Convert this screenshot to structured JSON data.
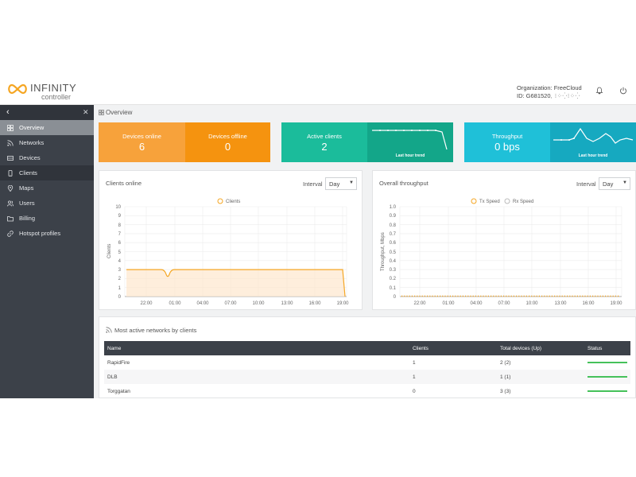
{
  "header": {
    "logo_title": "INFINITY",
    "logo_subtitle": "controller",
    "organization": "Organization: FreeCloud",
    "id_label": "ID: G681520",
    "id_suffix": ", ⁝⁘⁛⁝⁘⁛",
    "icons": [
      "bell-icon",
      "power-icon"
    ]
  },
  "sidebar": {
    "back_icon": "back-chevron-icon",
    "pin_icon": "pin-icon",
    "items": [
      {
        "label": "Overview",
        "icon": "grid-icon",
        "state": "active"
      },
      {
        "label": "Networks",
        "icon": "rss-icon",
        "state": ""
      },
      {
        "label": "Devices",
        "icon": "device-icon",
        "state": ""
      },
      {
        "label": "Clients",
        "icon": "phone-icon",
        "state": "hover"
      },
      {
        "label": "Maps",
        "icon": "map-pin-icon",
        "state": ""
      },
      {
        "label": "Users",
        "icon": "users-icon",
        "state": ""
      },
      {
        "label": "Billing",
        "icon": "folder-icon",
        "state": ""
      },
      {
        "label": "Hotspot profiles",
        "icon": "link-icon",
        "state": ""
      }
    ]
  },
  "main": {
    "title": "Overview",
    "tiles": {
      "devices_online": {
        "label": "Devices online",
        "value": "6",
        "color": "#f7a23b"
      },
      "devices_offline": {
        "label": "Devices offline",
        "value": "0",
        "color": "#f5930f"
      },
      "active_clients": {
        "label": "Active clients",
        "value": "2",
        "color": "#1bbc9b",
        "trend_label": "Last hour trend",
        "trend_color": "#13a689"
      },
      "throughput": {
        "label": "Throughput",
        "value": "0 bps",
        "color": "#1fc0d8",
        "trend_label": "Last hour trend",
        "trend_color": "#16a9c0"
      }
    },
    "clients_card": {
      "title": "Clients online",
      "interval_label": "Interval",
      "interval_value": "Day"
    },
    "throughput_card": {
      "title": "Overall throughput",
      "interval_label": "Interval",
      "interval_value": "Day"
    },
    "table": {
      "title": "Most active networks by clients",
      "columns": [
        "Name",
        "Clients",
        "Total devices (Up)",
        "Status"
      ],
      "rows": [
        {
          "name": "RapidFire",
          "clients": "1",
          "devices": "2 (2)",
          "status": "up"
        },
        {
          "name": "DLB",
          "clients": "1",
          "devices": "1 (1)",
          "status": "up"
        },
        {
          "name": "Torggatan",
          "clients": "0",
          "devices": "3 (3)",
          "status": "up"
        }
      ]
    }
  },
  "chart_data": [
    {
      "type": "area",
      "legend": [
        "Clients"
      ],
      "ylabel": "Clients",
      "ylim": [
        0,
        10
      ],
      "yticks": [
        "0",
        "1",
        "2",
        "3",
        "4",
        "5",
        "6",
        "7",
        "8",
        "9",
        "10"
      ],
      "xticks": [
        "22:00",
        "01:00",
        "04:00",
        "07:00",
        "10:00",
        "13:00",
        "16:00",
        "19:00"
      ],
      "series": [
        {
          "name": "Clients",
          "color": "#f5a623",
          "points": [
            [
              0,
              3
            ],
            [
              0.16,
              3
            ],
            [
              0.19,
              2
            ],
            [
              0.21,
              3
            ],
            [
              0.99,
              3
            ],
            [
              1,
              0
            ]
          ]
        }
      ]
    },
    {
      "type": "line",
      "legend": [
        "Tx Speed",
        "Rx Speed"
      ],
      "ylabel": "Throughput, Mbps",
      "ylim": [
        0,
        1
      ],
      "yticks": [
        "0",
        "0.1",
        "0.2",
        "0.3",
        "0.4",
        "0.5",
        "0.6",
        "0.7",
        "0.8",
        "0.9",
        "1.0"
      ],
      "xticks": [
        "22:00",
        "01:00",
        "04:00",
        "07:00",
        "10:00",
        "13:00",
        "16:00",
        "19:00"
      ],
      "series": [
        {
          "name": "Tx Speed",
          "color": "#f5a623",
          "values": "all-zero"
        }
      ]
    }
  ]
}
